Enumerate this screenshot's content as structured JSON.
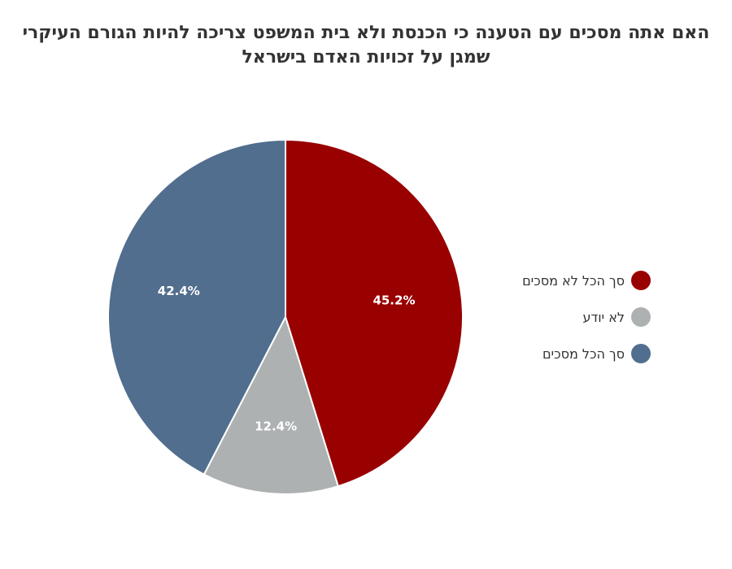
{
  "chart_data": {
    "type": "pie",
    "title": "האם אתה מסכים עם הטענה כי הכנסת ולא בית המשפט צריכה להיות הגורם העיקרי שמגן על זכויות האדם בישראל",
    "slices": [
      {
        "name": "סך הכל לא מסכים",
        "value": 45.2,
        "label": "45.2%",
        "color": "#990000"
      },
      {
        "name": "לא יודע",
        "value": 12.4,
        "label": "12.4%",
        "color": "#adb1b1"
      },
      {
        "name": "סך הכל מסכים",
        "value": 42.4,
        "label": "42.4%",
        "color": "#516e8e"
      }
    ],
    "legend_position": "right",
    "start_angle": "top",
    "direction": "clockwise"
  }
}
